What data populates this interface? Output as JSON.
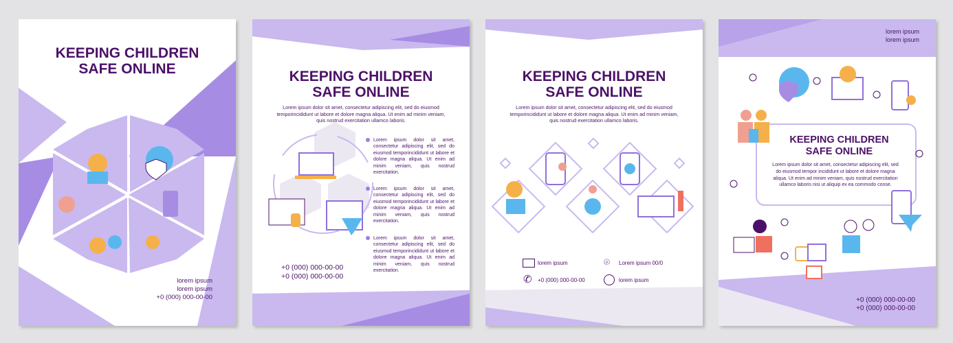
{
  "title": "KEEPING CHILDREN SAFE ONLINE",
  "title_line1": "KEEPING CHILDREN",
  "title_line2": "SAFE ONLINE",
  "colors": {
    "title": "#4b1168",
    "light_purple": "#c9b9ef",
    "mid_purple": "#a78ce4",
    "dark_purple": "#8f6fdc",
    "accent_orange": "#f5b04a",
    "accent_blue": "#5ab7ee"
  },
  "page1": {
    "footer": [
      "lorem ipsum",
      "lorem ipsum",
      "+0 (000) 000-00-00"
    ]
  },
  "page2": {
    "intro": "Lorem ipsum dolor sit amet, consectetur adipiscing elit, sed do eiusmod temporincididunt ut labore et dolore magna aliqua. Ut enim ad minim veniam, quis nostrud exercitation ullamco laboris.",
    "bullets": [
      "Lorem ipsum dolor sit amet, consectetur adipiscing elit, sed do eiusmod temporincididunt ut labore et dolore magna aliqua. Ut enim ad minim veniam, quis nostrud exercitation.",
      "Lorem ipsum dolor sit amet, consectetur adipiscing elit, sed do eiusmod temporincididunt ut labore et dolore magna aliqua. Ut enim ad minim veniam, quis nostrud exercitation.",
      "Lorem ipsum dolor sit amet, consectetur adipiscing elit, sed do eiusmod temporincididunt ut labore et dolore magna aliqua. Ut enim ad minim veniam, quis nostrud exercitation."
    ],
    "phones": [
      "+0 (000) 000-00-00",
      "+0 (000) 000-00-00"
    ]
  },
  "page3": {
    "intro": "Lorem ipsum dolor sit amet, consectetur adipiscing elit, sed do eiusmod temporincididunt ut labore et dolore magna aliqua. Ut enim ad minim veniam, quis nostrud exercitation ullamco laboris.",
    "contacts": {
      "email": "lorem ipsum",
      "location": "Lorem ipsum 00/0",
      "phone": "+0 (000) 000-00-00",
      "web": "lorem ipsum"
    }
  },
  "page4": {
    "header": [
      "lorem ipsum",
      "lorem ipsum"
    ],
    "intro": "Lorem ipsum dolor sit amet, consectetur adipiscing elit, sed do eiusmod tempor incididunt ut labore et dolore magna aliqua. Ut enim ad minim veniam, quis nostrud exercitation ullamco laboris nisi ut aliquip ex ea commodo conse.",
    "phones": [
      "+0 (000) 000-00-00",
      "+0 (000) 000-00-00"
    ]
  }
}
